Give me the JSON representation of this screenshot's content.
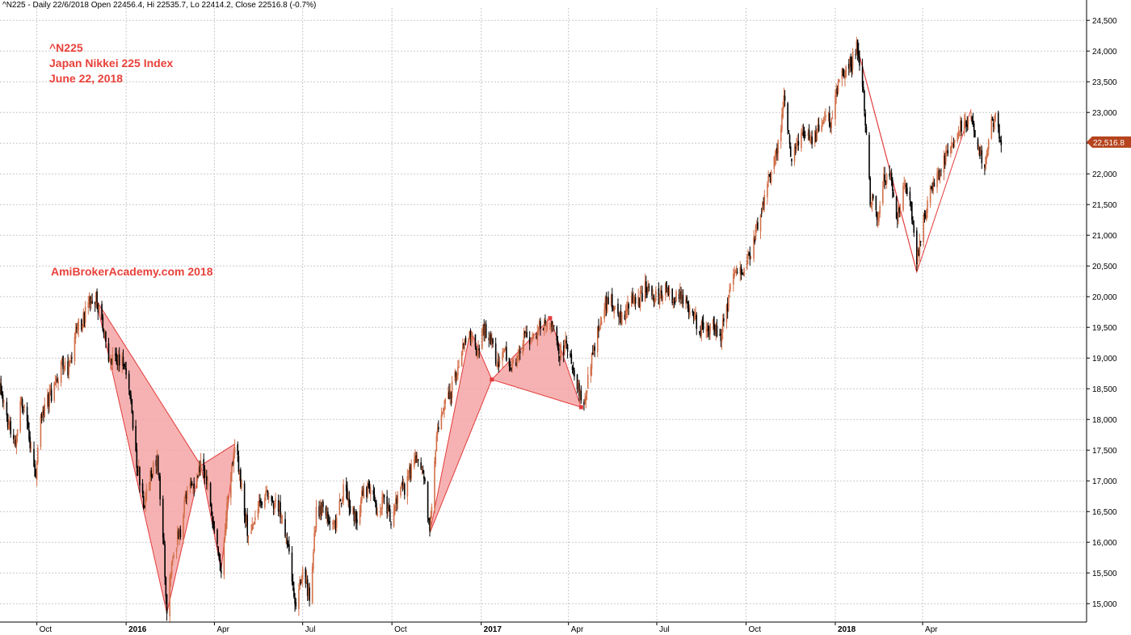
{
  "header": {
    "info_line": "^N225 - Daily 22/6/2018 Open 22456.4, Hi 22535.7, Lo 22414.2, Close 22516.8 (-0.7%)"
  },
  "annotations": {
    "title_lines": [
      "^N225",
      "Japan Nikkei 225 Index",
      "June 22, 2018"
    ],
    "watermark": "AmiBrokerAcademy.com 2018"
  },
  "colors": {
    "up_candle": "#d2704a",
    "down_candle": "#000000",
    "pattern_fill": "#f4a5a5",
    "pattern_stroke": "#e23b3b",
    "price_tag": "#b5441f",
    "grid": "#c8c8c8",
    "annotation_text": "#e8413a"
  },
  "chart_data": {
    "type": "candlestick",
    "ylim": [
      14700,
      24700
    ],
    "y_ticks": [
      15000,
      15500,
      16000,
      16500,
      17000,
      17500,
      18000,
      18500,
      19000,
      19500,
      20000,
      20500,
      21000,
      21500,
      22000,
      22500,
      23000,
      23500,
      24000,
      24500
    ],
    "y_tick_labels": [
      "15,000",
      "15,500",
      "16,000",
      "16,500",
      "17,000",
      "17,500",
      "18,000",
      "18,500",
      "19,000",
      "19,500",
      "20,000",
      "20,500",
      "21,000",
      "21,500",
      "22,000",
      "22,500",
      "23,000",
      "23,500",
      "24,000",
      "24,500"
    ],
    "xlim": [
      "2015-08-24",
      "2018-09-17"
    ],
    "x_ticks": [
      {
        "date": "2015-10-01",
        "label": "Oct",
        "bold": false
      },
      {
        "date": "2016-01-01",
        "label": "2016",
        "bold": true
      },
      {
        "date": "2016-04-01",
        "label": "Apr",
        "bold": false
      },
      {
        "date": "2016-07-01",
        "label": "Jul",
        "bold": false
      },
      {
        "date": "2016-10-01",
        "label": "Oct",
        "bold": false
      },
      {
        "date": "2017-01-01",
        "label": "2017",
        "bold": true
      },
      {
        "date": "2017-04-01",
        "label": "Apr",
        "bold": false
      },
      {
        "date": "2017-07-01",
        "label": "Jul",
        "bold": false
      },
      {
        "date": "2017-10-01",
        "label": "Oct",
        "bold": false
      },
      {
        "date": "2018-01-01",
        "label": "2018",
        "bold": true
      },
      {
        "date": "2018-04-01",
        "label": "Apr",
        "bold": false
      }
    ],
    "last_price": {
      "value": 22516.8,
      "label": "22,516.8"
    },
    "path": [
      [
        "2015-08-24",
        18500
      ],
      [
        "2015-09-01",
        18000
      ],
      [
        "2015-09-08",
        17600
      ],
      [
        "2015-09-15",
        18300
      ],
      [
        "2015-09-22",
        17900
      ],
      [
        "2015-09-29",
        17000
      ],
      [
        "2015-10-06",
        18100
      ],
      [
        "2015-10-13",
        18300
      ],
      [
        "2015-10-20",
        18600
      ],
      [
        "2015-10-27",
        18900
      ],
      [
        "2015-11-03",
        18800
      ],
      [
        "2015-11-10",
        19500
      ],
      [
        "2015-11-17",
        19600
      ],
      [
        "2015-11-24",
        19900
      ],
      [
        "2015-12-01",
        19950
      ],
      [
        "2015-12-08",
        19500
      ],
      [
        "2015-12-15",
        19000
      ],
      [
        "2015-12-22",
        18900
      ],
      [
        "2015-12-29",
        19000
      ],
      [
        "2016-01-05",
        18400
      ],
      [
        "2016-01-12",
        17300
      ],
      [
        "2016-01-19",
        16600
      ],
      [
        "2016-01-26",
        17100
      ],
      [
        "2016-02-02",
        17400
      ],
      [
        "2016-02-09",
        15900
      ],
      [
        "2016-02-12",
        14850
      ],
      [
        "2016-02-19",
        15900
      ],
      [
        "2016-02-26",
        16200
      ],
      [
        "2016-03-04",
        16900
      ],
      [
        "2016-03-11",
        16900
      ],
      [
        "2016-03-18",
        17250
      ],
      [
        "2016-03-25",
        17000
      ],
      [
        "2016-04-01",
        16200
      ],
      [
        "2016-04-08",
        15550
      ],
      [
        "2016-04-15",
        16800
      ],
      [
        "2016-04-22",
        17600
      ],
      [
        "2016-04-29",
        16900
      ],
      [
        "2016-05-06",
        16100
      ],
      [
        "2016-05-13",
        16400
      ],
      [
        "2016-05-20",
        16700
      ],
      [
        "2016-05-27",
        16800
      ],
      [
        "2016-06-03",
        16600
      ],
      [
        "2016-06-10",
        16500
      ],
      [
        "2016-06-17",
        15800
      ],
      [
        "2016-06-24",
        14950
      ],
      [
        "2016-07-01",
        15600
      ],
      [
        "2016-07-08",
        15100
      ],
      [
        "2016-07-15",
        16500
      ],
      [
        "2016-07-22",
        16600
      ],
      [
        "2016-07-29",
        16400
      ],
      [
        "2016-08-05",
        16300
      ],
      [
        "2016-08-12",
        16900
      ],
      [
        "2016-08-19",
        16500
      ],
      [
        "2016-08-26",
        16400
      ],
      [
        "2016-09-02",
        16900
      ],
      [
        "2016-09-09",
        16800
      ],
      [
        "2016-09-16",
        16500
      ],
      [
        "2016-09-23",
        16700
      ],
      [
        "2016-09-30",
        16400
      ],
      [
        "2016-10-07",
        16800
      ],
      [
        "2016-10-14",
        16900
      ],
      [
        "2016-10-21",
        17200
      ],
      [
        "2016-10-28",
        17400
      ],
      [
        "2016-11-04",
        16900
      ],
      [
        "2016-11-09",
        16150
      ],
      [
        "2016-11-16",
        17800
      ],
      [
        "2016-11-23",
        18200
      ],
      [
        "2016-11-30",
        18400
      ],
      [
        "2016-12-07",
        18800
      ],
      [
        "2016-12-14",
        19300
      ],
      [
        "2016-12-21",
        19450
      ],
      [
        "2016-12-28",
        19100
      ],
      [
        "2017-01-04",
        19500
      ],
      [
        "2017-01-11",
        19300
      ],
      [
        "2017-01-18",
        18900
      ],
      [
        "2017-01-25",
        19100
      ],
      [
        "2017-02-01",
        18900
      ],
      [
        "2017-02-08",
        19000
      ],
      [
        "2017-02-15",
        19400
      ],
      [
        "2017-02-22",
        19300
      ],
      [
        "2017-03-01",
        19500
      ],
      [
        "2017-03-08",
        19600
      ],
      [
        "2017-03-15",
        19600
      ],
      [
        "2017-03-22",
        19100
      ],
      [
        "2017-03-29",
        19200
      ],
      [
        "2017-04-05",
        18800
      ],
      [
        "2017-04-12",
        18500
      ],
      [
        "2017-04-17",
        18300
      ],
      [
        "2017-04-24",
        18900
      ],
      [
        "2017-05-01",
        19400
      ],
      [
        "2017-05-08",
        19850
      ],
      [
        "2017-05-15",
        19900
      ],
      [
        "2017-05-22",
        19650
      ],
      [
        "2017-05-29",
        19700
      ],
      [
        "2017-06-05",
        19900
      ],
      [
        "2017-06-12",
        19900
      ],
      [
        "2017-06-19",
        20150
      ],
      [
        "2017-06-26",
        20050
      ],
      [
        "2017-07-03",
        20000
      ],
      [
        "2017-07-10",
        20100
      ],
      [
        "2017-07-17",
        20000
      ],
      [
        "2017-07-24",
        20050
      ],
      [
        "2017-07-31",
        19950
      ],
      [
        "2017-08-07",
        19700
      ],
      [
        "2017-08-14",
        19450
      ],
      [
        "2017-08-21",
        19400
      ],
      [
        "2017-08-28",
        19600
      ],
      [
        "2017-09-04",
        19300
      ],
      [
        "2017-09-11",
        19800
      ],
      [
        "2017-09-18",
        20300
      ],
      [
        "2017-09-25",
        20400
      ],
      [
        "2017-10-02",
        20600
      ],
      [
        "2017-10-09",
        20900
      ],
      [
        "2017-10-16",
        21400
      ],
      [
        "2017-10-23",
        21800
      ],
      [
        "2017-10-30",
        22200
      ],
      [
        "2017-11-06",
        22700
      ],
      [
        "2017-11-09",
        23300
      ],
      [
        "2017-11-16",
        22300
      ],
      [
        "2017-11-23",
        22500
      ],
      [
        "2017-11-30",
        22700
      ],
      [
        "2017-12-07",
        22500
      ],
      [
        "2017-12-14",
        22700
      ],
      [
        "2017-12-21",
        22900
      ],
      [
        "2017-12-28",
        22800
      ],
      [
        "2018-01-04",
        23500
      ],
      [
        "2018-01-11",
        23700
      ],
      [
        "2018-01-18",
        23800
      ],
      [
        "2018-01-23",
        24100
      ],
      [
        "2018-01-30",
        23300
      ],
      [
        "2018-02-06",
        21600
      ],
      [
        "2018-02-13",
        21300
      ],
      [
        "2018-02-20",
        21900
      ],
      [
        "2018-02-27",
        22000
      ],
      [
        "2018-03-06",
        21300
      ],
      [
        "2018-03-13",
        21800
      ],
      [
        "2018-03-20",
        21400
      ],
      [
        "2018-03-26",
        20600
      ],
      [
        "2018-04-02",
        21300
      ],
      [
        "2018-04-09",
        21700
      ],
      [
        "2018-04-16",
        21900
      ],
      [
        "2018-04-23",
        22200
      ],
      [
        "2018-04-30",
        22500
      ],
      [
        "2018-05-07",
        22700
      ],
      [
        "2018-05-14",
        22800
      ],
      [
        "2018-05-21",
        22900
      ],
      [
        "2018-05-28",
        22400
      ],
      [
        "2018-06-04",
        22100
      ],
      [
        "2018-06-11",
        22800
      ],
      [
        "2018-06-15",
        22900
      ],
      [
        "2018-06-22",
        22517
      ]
    ],
    "patterns": [
      {
        "type": "bat",
        "points": [
          [
            "2015-12-01",
            19950
          ],
          [
            "2016-02-12",
            14850
          ],
          [
            "2016-03-18",
            17250
          ],
          [
            "2016-04-08",
            15550
          ],
          [
            "2016-04-22",
            17600
          ]
        ]
      },
      {
        "type": "bat",
        "points": [
          [
            "2016-11-09",
            16150
          ],
          [
            "2016-12-21",
            19450
          ],
          [
            "2017-01-12",
            18650
          ],
          [
            "2017-03-13",
            19650
          ],
          [
            "2017-04-14",
            18200
          ]
        ],
        "markers": true
      },
      {
        "type": "bat",
        "points": [
          [
            "2018-01-23",
            24100
          ],
          [
            "2018-03-01",
            21900
          ],
          [
            "2018-03-26",
            20400
          ],
          [
            "2018-05-21",
            23050
          ]
        ]
      }
    ]
  }
}
